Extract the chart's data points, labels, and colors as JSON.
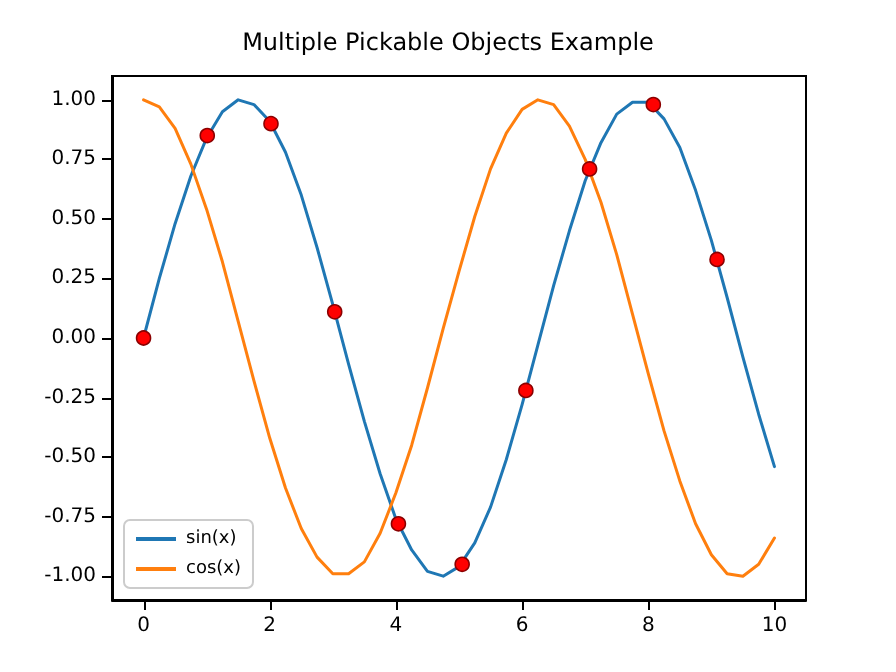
{
  "chart_data": {
    "type": "line",
    "title": "Multiple Pickable Objects Example",
    "xlim": [
      -0.5,
      10.5
    ],
    "xticks": [
      0,
      2,
      4,
      6,
      8,
      10
    ],
    "ylim": [
      -1.1,
      1.1
    ],
    "yticks": [
      {
        "value": -1,
        "label": "-1.00"
      },
      {
        "value": -0.75,
        "label": "-0.75"
      },
      {
        "value": -0.5,
        "label": "-0.50"
      },
      {
        "value": -0.25,
        "label": "-0.25"
      },
      {
        "value": 0,
        "label": "0.00"
      },
      {
        "value": 0.25,
        "label": "0.25"
      },
      {
        "value": 0.5,
        "label": "0.50"
      },
      {
        "value": 0.75,
        "label": "0.75"
      },
      {
        "value": 1,
        "label": "1.00"
      }
    ],
    "grid": false,
    "legend": "bottom left",
    "line_style": "solid",
    "series": [
      {
        "name": "sin(x)",
        "color": "#1f77b4",
        "marker": "none",
        "x": [
          0,
          0.25,
          0.5,
          0.75,
          1,
          1.25,
          1.5,
          1.75,
          2,
          2.25,
          2.5,
          2.75,
          3,
          3.25,
          3.5,
          3.75,
          4,
          4.25,
          4.5,
          4.75,
          5,
          5.25,
          5.5,
          5.75,
          6,
          6.25,
          6.5,
          6.75,
          7,
          7.25,
          7.5,
          7.75,
          8,
          8.25,
          8.5,
          8.75,
          9,
          9.25,
          9.5,
          9.75,
          10
        ],
        "values": [
          0,
          0.25,
          0.48,
          0.68,
          0.84,
          0.95,
          1.0,
          0.98,
          0.91,
          0.78,
          0.6,
          0.38,
          0.14,
          -0.11,
          -0.35,
          -0.57,
          -0.76,
          -0.89,
          -0.98,
          -1.0,
          -0.96,
          -0.86,
          -0.71,
          -0.51,
          -0.28,
          -0.03,
          0.22,
          0.45,
          0.66,
          0.82,
          0.94,
          0.99,
          0.99,
          0.92,
          0.8,
          0.62,
          0.41,
          0.17,
          -0.08,
          -0.32,
          -0.54
        ]
      },
      {
        "name": "cos(x)",
        "color": "#ff7f0e",
        "marker": "none",
        "x": [
          0,
          0.25,
          0.5,
          0.75,
          1,
          1.25,
          1.5,
          1.75,
          2,
          2.25,
          2.5,
          2.75,
          3,
          3.25,
          3.5,
          3.75,
          4,
          4.25,
          4.5,
          4.75,
          5,
          5.25,
          5.5,
          5.75,
          6,
          6.25,
          6.5,
          6.75,
          7,
          7.25,
          7.5,
          7.75,
          8,
          8.25,
          8.5,
          8.75,
          9,
          9.25,
          9.5,
          9.75,
          10
        ],
        "values": [
          1,
          0.97,
          0.88,
          0.73,
          0.54,
          0.32,
          0.07,
          -0.18,
          -0.42,
          -0.63,
          -0.8,
          -0.92,
          -0.99,
          -0.99,
          -0.94,
          -0.82,
          -0.65,
          -0.45,
          -0.21,
          0.04,
          0.28,
          0.51,
          0.71,
          0.86,
          0.96,
          1.0,
          0.98,
          0.89,
          0.75,
          0.57,
          0.35,
          0.1,
          -0.15,
          -0.39,
          -0.6,
          -0.78,
          -0.91,
          -0.99,
          -1.0,
          -0.95,
          -0.84
        ]
      },
      {
        "color": "#ff0000",
        "type": "scatter",
        "marker": "circle",
        "x": [
          0,
          1.01,
          2.02,
          3.03,
          4.04,
          5.05,
          6.06,
          7.07,
          8.08,
          9.09
        ],
        "values": [
          0,
          0.85,
          0.9,
          0.11,
          -0.78,
          -0.95,
          -0.22,
          0.71,
          0.98,
          0.33
        ]
      }
    ]
  }
}
